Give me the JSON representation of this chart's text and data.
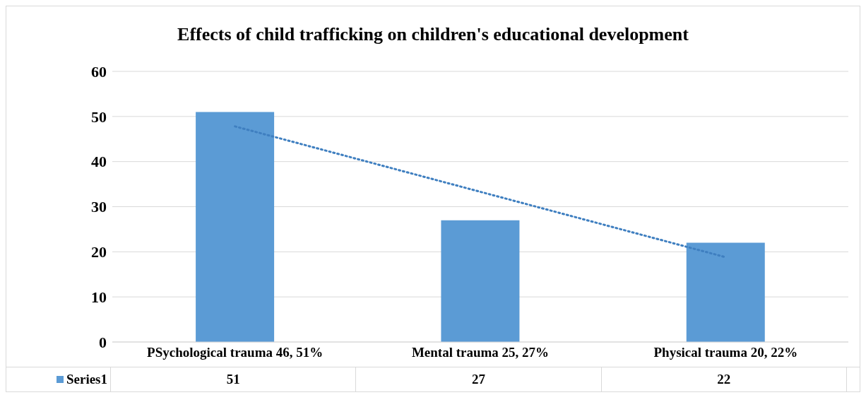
{
  "chart_data": {
    "type": "bar",
    "title": "Effects of child trafficking on children's educational development",
    "categories": [
      "PSychological trauma 46, 51%",
      "Mental trauma 25, 27%",
      "Physical trauma 20, 22%"
    ],
    "series": [
      {
        "name": "Series1",
        "color": "#5b9bd5",
        "values": [
          51,
          27,
          22
        ],
        "value_labels": [
          "51",
          "27",
          "22"
        ]
      },
      {
        "type": "line",
        "color": "#3f7fc0",
        "line_style": "dotted",
        "x": [
          "PSychological trauma 46, 51%",
          "Mental trauma 25, 27%",
          "Physical trauma 20, 22%"
        ],
        "values": [
          47.8,
          33.3,
          18.8
        ]
      }
    ],
    "ylim": [
      0,
      60
    ],
    "yticks": [
      0,
      10,
      20,
      30,
      40,
      50,
      60
    ],
    "grid": "y",
    "legend": "bottom",
    "marker": "none"
  }
}
